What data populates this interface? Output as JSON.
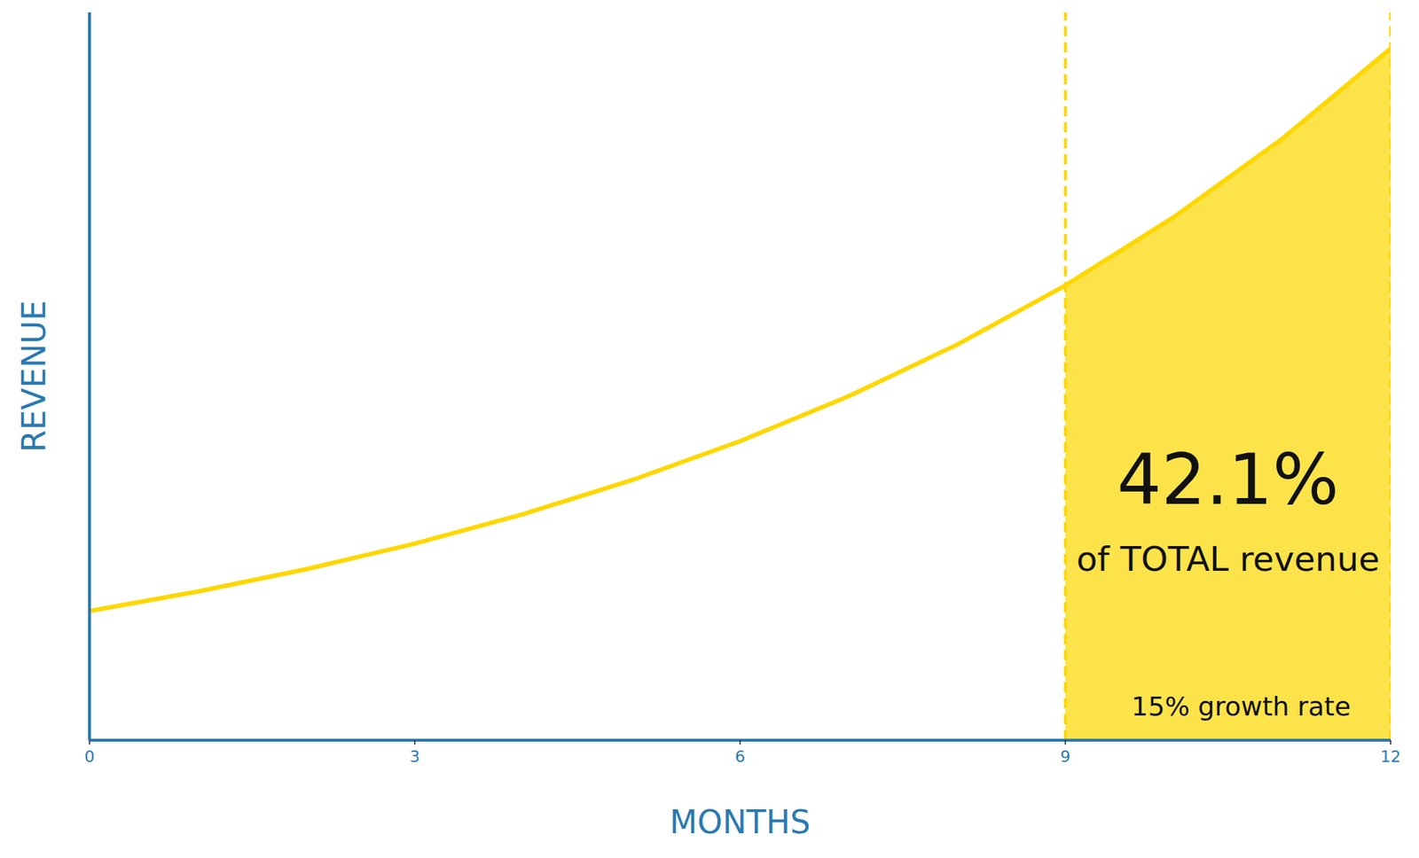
{
  "chart_data": {
    "type": "line",
    "x": [
      0,
      1,
      2,
      3,
      4,
      5,
      6,
      7,
      8,
      9,
      10,
      11,
      12
    ],
    "values": [
      100,
      115,
      132.3,
      152.1,
      174.9,
      201.1,
      231.3,
      266.0,
      305.9,
      351.8,
      404.6,
      465.2,
      535.0
    ],
    "color": "#FFD700",
    "xlim": [
      0,
      12
    ],
    "xticks": [
      0,
      3,
      6,
      9,
      12
    ],
    "ylim": [
      0,
      563
    ],
    "x_label": "MONTHS",
    "y_label": "REVENUE",
    "tick_labels": "x",
    "grid": false,
    "highlight_range": [
      9,
      12
    ],
    "annotation": "42.1%",
    "annotation_subtitle": "of TOTAL revenue",
    "note": "15% growth rate"
  }
}
